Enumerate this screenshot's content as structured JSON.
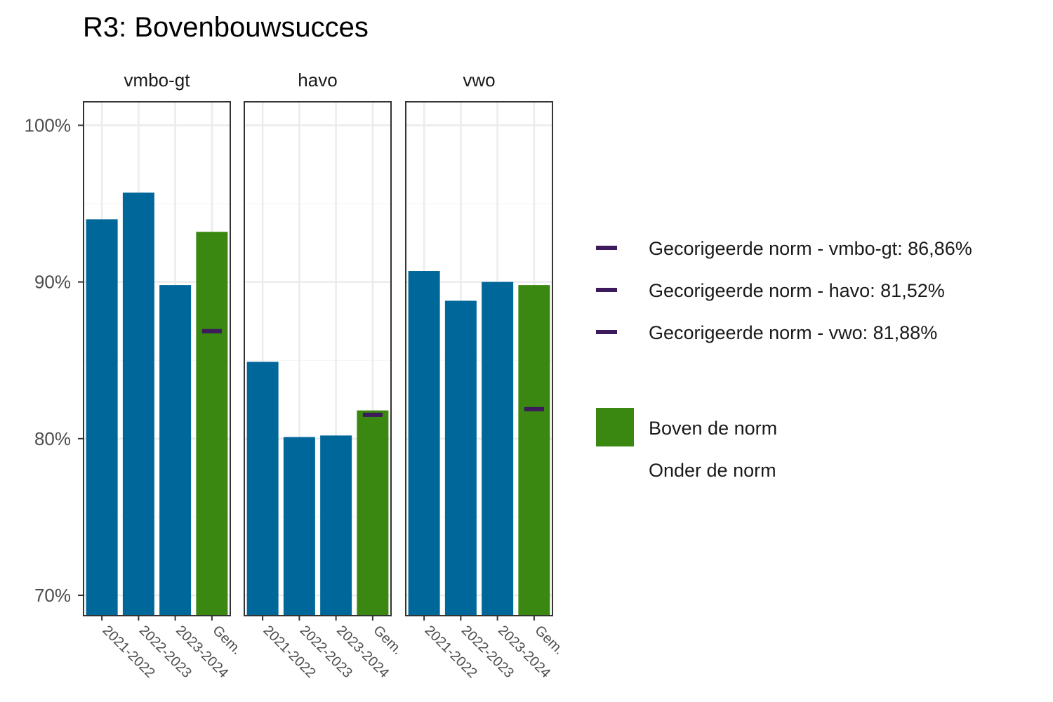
{
  "chart_data": {
    "type": "bar",
    "title": "R3: Bovenbouwsucces",
    "y_unit": "%",
    "ylim": [
      68.7,
      101.5
    ],
    "yticks": [
      70,
      80,
      90,
      100
    ],
    "ytick_labels": [
      "70%",
      "80%",
      "90%",
      "100%"
    ],
    "grid": true,
    "categories": [
      "2021-2022",
      "2022-2023",
      "2023-2024",
      "Gem."
    ],
    "panels": [
      {
        "name": "vmbo-gt",
        "values": [
          94.0,
          95.7,
          89.8,
          93.2
        ],
        "status": [
          "Onder de norm",
          "Onder de norm",
          "Onder de norm",
          "Boven de norm"
        ],
        "norm": 86.86
      },
      {
        "name": "havo",
        "values": [
          84.9,
          80.1,
          80.2,
          81.8
        ],
        "status": [
          "Onder de norm",
          "Onder de norm",
          "Onder de norm",
          "Boven de norm"
        ],
        "norm": 81.52
      },
      {
        "name": "vwo",
        "values": [
          90.7,
          88.8,
          90.0,
          89.8
        ],
        "status": [
          "Onder de norm",
          "Onder de norm",
          "Onder de norm",
          "Boven de norm"
        ],
        "norm": 81.88
      }
    ],
    "colors": {
      "bar": "#00679a",
      "boven": "#3a8711",
      "norm": "#3c1a5b"
    },
    "legend": {
      "position": "right",
      "norm_entries": [
        "Gecorigeerde norm - vmbo-gt: 86,86%",
        "Gecorigeerde norm - havo: 81,52%",
        "Gecorigeerde norm - vwo: 81,88%"
      ],
      "fill_entries": [
        {
          "label": "Boven de norm",
          "color": "#3a8711"
        },
        {
          "label": "Onder de norm",
          "color": null
        }
      ]
    }
  }
}
